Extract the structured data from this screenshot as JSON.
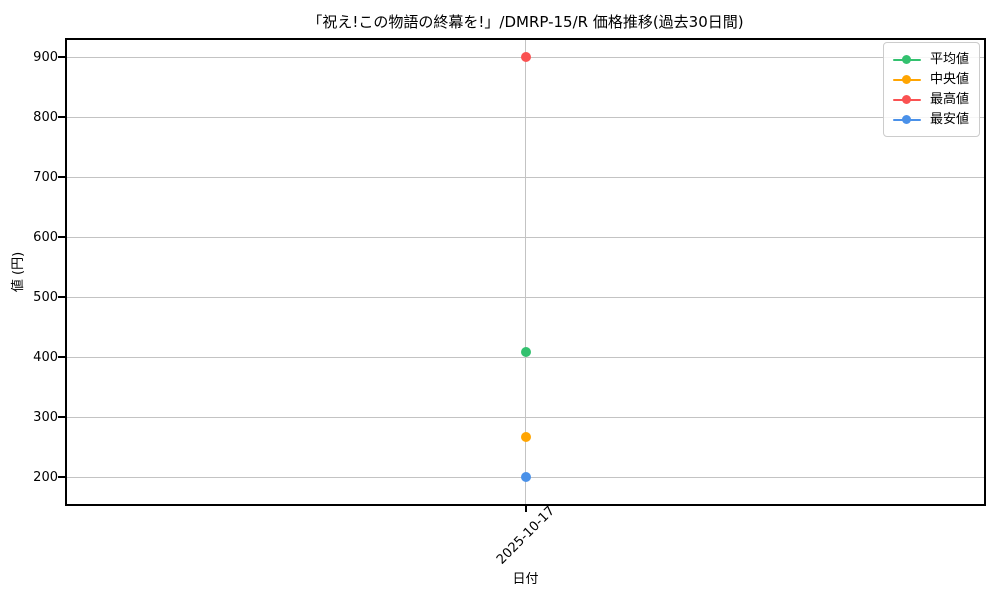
{
  "chart_data": {
    "type": "line",
    "title": "「祝え!この物語の終幕を!」/DMRP-15/R 価格推移(過去30日間)",
    "xlabel": "日付",
    "ylabel": "値 (円)",
    "categories": [
      "2025-10-17"
    ],
    "series": [
      {
        "name": "平均値",
        "color": "#33c16f",
        "values": [
          408
        ]
      },
      {
        "name": "中央値",
        "color": "#ffa502",
        "values": [
          266
        ]
      },
      {
        "name": "最高値",
        "color": "#fa5252",
        "values": [
          900
        ]
      },
      {
        "name": "最安値",
        "color": "#4a91e9",
        "values": [
          200
        ]
      }
    ],
    "ylim": [
      151.7,
      931.7
    ],
    "yticks": [
      200,
      300,
      400,
      500,
      600,
      700,
      800,
      900
    ],
    "x_tick_rotation": 45,
    "grid": true,
    "grid_color": "#c3c3c3",
    "axis_color": "#000000",
    "background_color": "#ffffff",
    "legend_position": "upper right",
    "marker": "o"
  }
}
